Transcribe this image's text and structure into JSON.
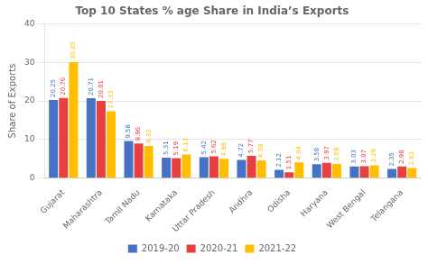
{
  "chart_data": {
    "type": "bar",
    "title": "Top 10 States % age Share in India’s Exports",
    "ylabel": "Share of Exports",
    "categories": [
      "Gujarat",
      "Maharashtra",
      "Tamil Nadu",
      "Karnataka",
      "Uttar Pradesh",
      "Andhra",
      "Odisha",
      "Haryana",
      "West Bengal",
      "Telangana"
    ],
    "series": [
      {
        "name": "2019-20",
        "color": "#4472C4",
        "values": [
          20.25,
          20.71,
          9.58,
          5.31,
          5.42,
          4.72,
          2.12,
          3.58,
          3.03,
          2.35
        ]
      },
      {
        "name": "2020-21",
        "color": "#E84040",
        "values": [
          20.76,
          20.01,
          8.96,
          5.19,
          5.62,
          5.77,
          1.51,
          3.97,
          3.07,
          2.98
        ]
      },
      {
        "name": "2021-22",
        "color": "#FFBF00",
        "values": [
          30.05,
          17.33,
          8.33,
          6.13,
          4.98,
          4.58,
          4.04,
          3.68,
          3.29,
          2.61
        ]
      }
    ],
    "ylim": [
      0,
      40
    ],
    "yticks": [
      0,
      10,
      20,
      30,
      40
    ],
    "grid": true,
    "data_labels": true,
    "legend": "bottom"
  }
}
